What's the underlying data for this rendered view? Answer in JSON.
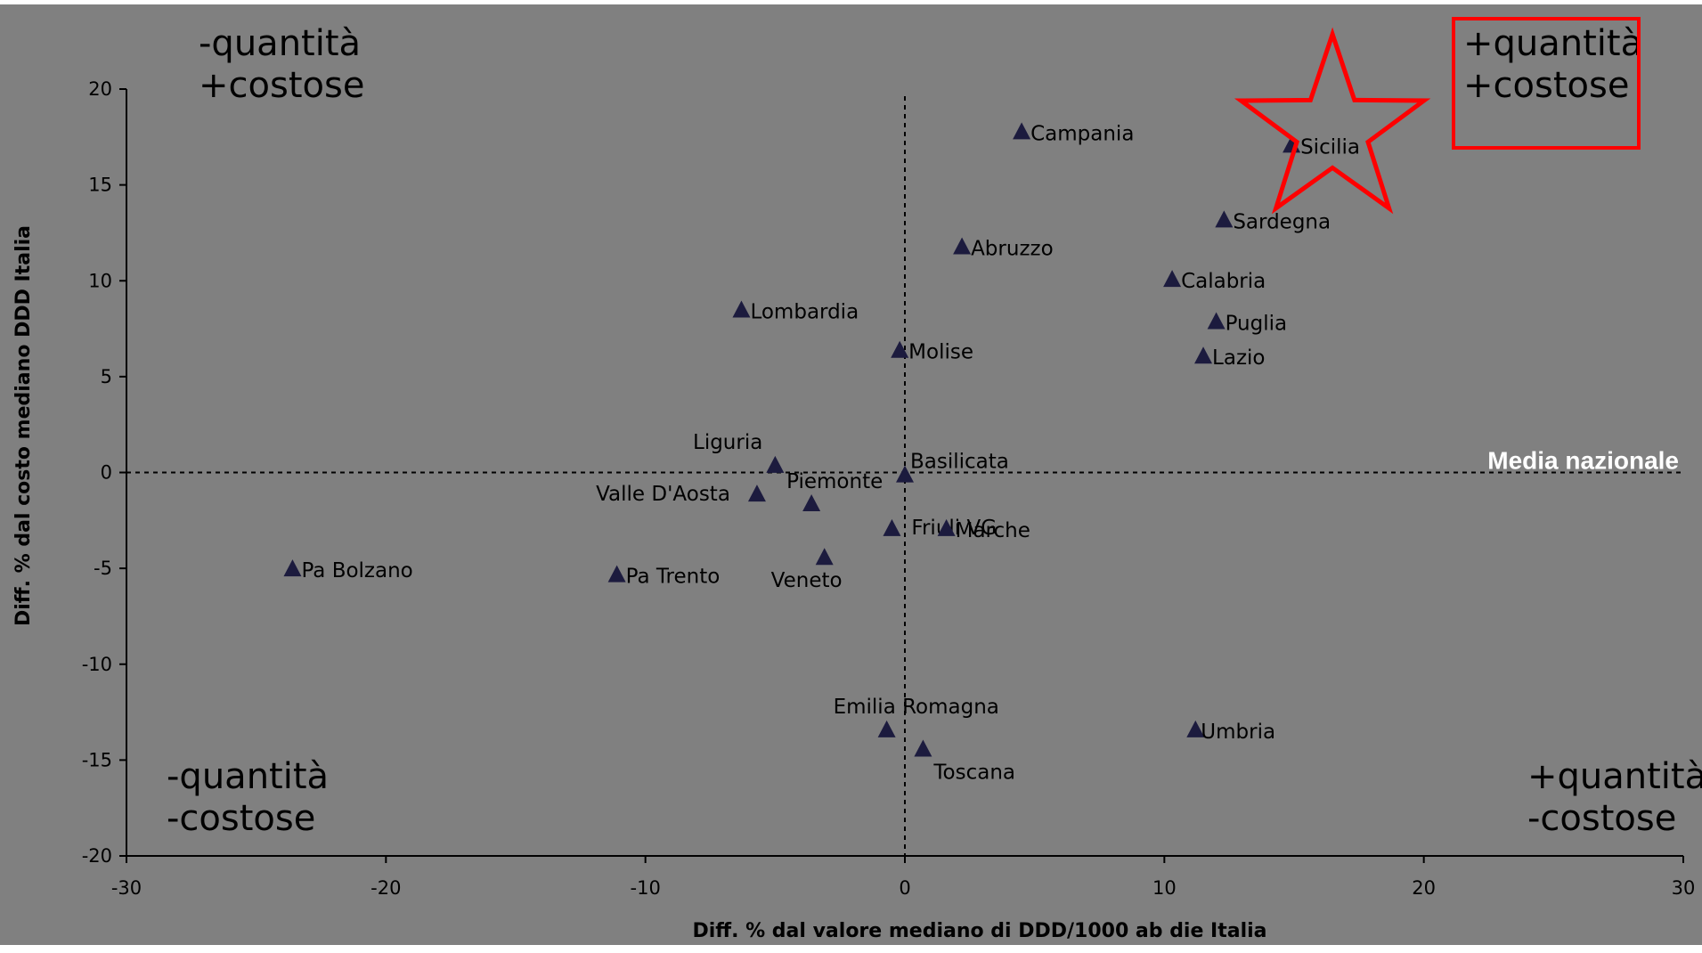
{
  "chart_data": {
    "type": "scatter",
    "xlabel": "Diff. % dal valore mediano di DDD/1000 ab die Italia",
    "ylabel": "Diff. % dal costo mediano DDD Italia",
    "xlim": [
      -30,
      30
    ],
    "ylim": [
      -20,
      20
    ],
    "x_ticks": [
      -30,
      -20,
      -10,
      0,
      10,
      20,
      30
    ],
    "y_ticks": [
      20,
      15,
      10,
      5,
      0,
      -5,
      -10,
      -15,
      -20
    ],
    "grid": false,
    "marker": "triangle",
    "marker_color": "#1c1b3e",
    "background_color": "#808080",
    "reference_lines": {
      "x": 0,
      "y": 0,
      "style": "dashed"
    },
    "reference_line_label": "Media nazionale",
    "quadrant_labels": [
      {
        "position": "top-left",
        "lines": [
          "-quantità",
          "+costose"
        ]
      },
      {
        "position": "top-right",
        "lines": [
          "+quantità",
          "+costose"
        ],
        "highlighted": true,
        "highlight_color": "#ff0000"
      },
      {
        "position": "bottom-left",
        "lines": [
          "-quantità",
          "-costose"
        ]
      },
      {
        "position": "bottom-right",
        "lines": [
          "+quantità",
          "-costose"
        ]
      }
    ],
    "highlight_point": "Sicilia",
    "points": [
      {
        "label": "Campania",
        "x": 4.5,
        "y": 17.8
      },
      {
        "label": "Sicilia",
        "x": 14.9,
        "y": 17.1
      },
      {
        "label": "Sardegna",
        "x": 12.3,
        "y": 13.2
      },
      {
        "label": "Abruzzo",
        "x": 2.2,
        "y": 11.8
      },
      {
        "label": "Calabria",
        "x": 10.3,
        "y": 10.1
      },
      {
        "label": "Lombardia",
        "x": -6.3,
        "y": 8.5
      },
      {
        "label": "Puglia",
        "x": 12.0,
        "y": 7.9
      },
      {
        "label": "Molise",
        "x": -0.2,
        "y": 6.4
      },
      {
        "label": "Lazio",
        "x": 11.5,
        "y": 6.1
      },
      {
        "label": "Liguria",
        "x": -5.0,
        "y": 0.4
      },
      {
        "label": "Basilicata",
        "x": 0.0,
        "y": -0.1
      },
      {
        "label": "Valle D'Aosta",
        "x": -5.7,
        "y": -1.1
      },
      {
        "label": "Piemonte",
        "x": -3.6,
        "y": -1.6
      },
      {
        "label": "Friuli VG",
        "x": -0.5,
        "y": -2.9
      },
      {
        "label": "Marche",
        "x": 1.6,
        "y": -2.9
      },
      {
        "label": "Veneto",
        "x": -3.1,
        "y": -4.4
      },
      {
        "label": "Pa Bolzano",
        "x": -23.6,
        "y": -5.0
      },
      {
        "label": "Pa Trento",
        "x": -11.1,
        "y": -5.3
      },
      {
        "label": "Emilia Romagna",
        "x": -0.7,
        "y": -13.4
      },
      {
        "label": "Umbria",
        "x": 11.2,
        "y": -13.4
      },
      {
        "label": "Toscana",
        "x": 0.7,
        "y": -14.4
      }
    ]
  }
}
